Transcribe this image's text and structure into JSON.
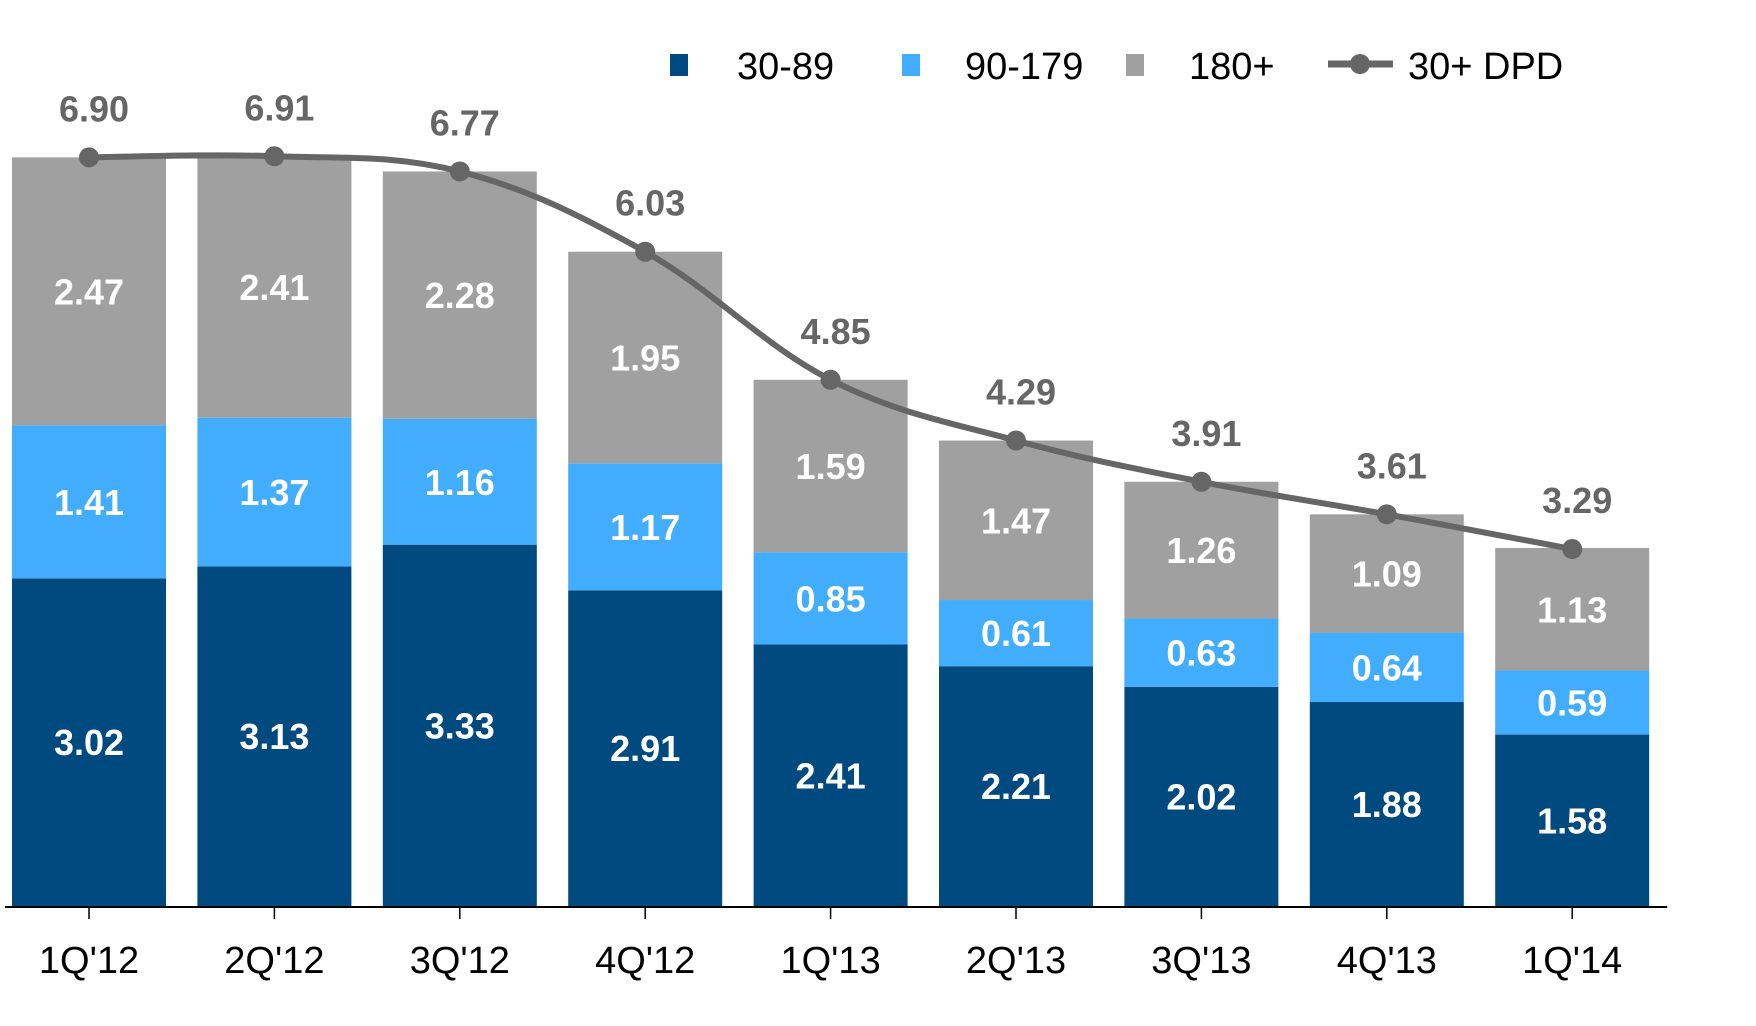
{
  "chart_data": {
    "type": "bar",
    "stacked": true,
    "title": "",
    "xlabel": "",
    "ylabel": "",
    "categories": [
      "1Q'12",
      "2Q'12",
      "3Q'12",
      "4Q'12",
      "1Q'13",
      "2Q'13",
      "3Q'13",
      "4Q'13",
      "1Q'14"
    ],
    "series": [
      {
        "name": "30-89",
        "type": "bar",
        "color": "#004a7f",
        "values": [
          3.02,
          3.13,
          3.33,
          2.91,
          2.41,
          2.21,
          2.02,
          1.88,
          1.58
        ]
      },
      {
        "name": "90-179",
        "type": "bar",
        "color": "#42adfc",
        "values": [
          1.41,
          1.37,
          1.16,
          1.17,
          0.85,
          0.61,
          0.63,
          0.64,
          0.59
        ]
      },
      {
        "name": "180+",
        "type": "bar",
        "color": "#a0a0a0",
        "values": [
          2.47,
          2.41,
          2.28,
          1.95,
          1.59,
          1.47,
          1.26,
          1.09,
          1.13
        ]
      },
      {
        "name": "30+ DPD",
        "type": "line",
        "color": "#666666",
        "values": [
          6.9,
          6.91,
          6.77,
          6.03,
          4.85,
          4.29,
          3.91,
          3.61,
          3.29
        ]
      }
    ],
    "value_labels": {
      "30-89": [
        "3.02",
        "3.13",
        "3.33",
        "2.91",
        "2.41",
        "2.21",
        "2.02",
        "1.88",
        "1.58"
      ],
      "90-179": [
        "1.41",
        "1.37",
        "1.16",
        "1.17",
        "0.85",
        "0.61",
        "0.63",
        "0.64",
        "0.59"
      ],
      "180+": [
        "2.47",
        "2.41",
        "2.28",
        "1.95",
        "1.59",
        "1.47",
        "1.26",
        "1.09",
        "1.13"
      ],
      "30+ DPD": [
        "6.90",
        "6.91",
        "6.77",
        "6.03",
        "4.85",
        "4.29",
        "3.91",
        "3.61",
        "3.29"
      ]
    },
    "ylim": [
      0,
      7.5
    ],
    "y_axis_visible": false,
    "grid": false,
    "legend": {
      "position": "top-right",
      "entries": [
        {
          "label": "30-89",
          "marker": "square",
          "color": "#004a7f"
        },
        {
          "label": "90-179",
          "marker": "square",
          "color": "#42adfc"
        },
        {
          "label": "180+",
          "marker": "square",
          "color": "#a0a0a0"
        },
        {
          "label": "30+ DPD",
          "marker": "line-dot",
          "color": "#666666"
        }
      ]
    }
  }
}
